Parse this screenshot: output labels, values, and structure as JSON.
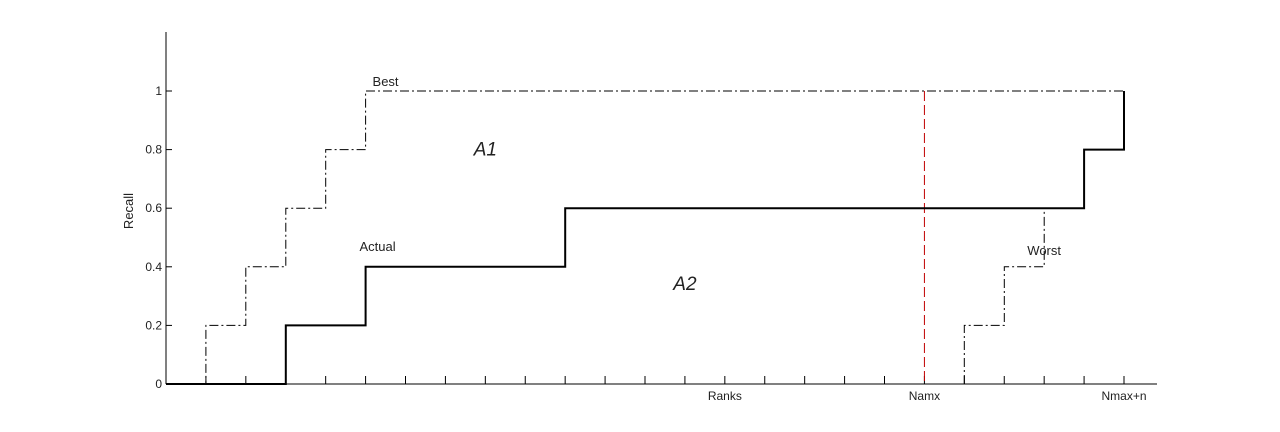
{
  "chart_data": {
    "type": "line",
    "title": "",
    "xlabel": "",
    "ylabel": "Recall",
    "xlim": [
      0,
      24
    ],
    "ylim": [
      0,
      1.2
    ],
    "yticks": [
      0,
      0.2,
      0.4,
      0.6,
      0.8,
      1
    ],
    "ytick_labels": [
      "0",
      "0.2",
      "0.4",
      "0.6",
      "0.8",
      "1"
    ],
    "xticks": [
      0,
      1,
      2,
      3,
      4,
      5,
      6,
      7,
      8,
      9,
      10,
      11,
      12,
      13,
      14,
      15,
      16,
      17,
      18,
      19,
      20,
      21,
      22,
      23,
      24
    ],
    "xtick_labels": [
      {
        "x": 14,
        "label": "Ranks"
      },
      {
        "x": 19,
        "label": "Namx"
      },
      {
        "x": 24,
        "label": "Nmax+n"
      }
    ],
    "series": [
      {
        "name": "Best",
        "style": "dashdot",
        "color": "#000000",
        "steps": [
          [
            0,
            0
          ],
          [
            1,
            0
          ],
          [
            1,
            0.2
          ],
          [
            2,
            0.2
          ],
          [
            2,
            0.4
          ],
          [
            3,
            0.4
          ],
          [
            3,
            0.6
          ],
          [
            4,
            0.6
          ],
          [
            4,
            0.8
          ],
          [
            5,
            0.8
          ],
          [
            5,
            1
          ],
          [
            24,
            1
          ]
        ]
      },
      {
        "name": "Actual",
        "style": "solid",
        "color": "#000000",
        "steps": [
          [
            0,
            0
          ],
          [
            3,
            0
          ],
          [
            3,
            0.2
          ],
          [
            5,
            0.2
          ],
          [
            5,
            0.4
          ],
          [
            10,
            0.4
          ],
          [
            10,
            0.6
          ],
          [
            23,
            0.6
          ],
          [
            23,
            0.8
          ],
          [
            24,
            0.8
          ],
          [
            24,
            1
          ]
        ]
      },
      {
        "name": "Worst",
        "style": "dashdot",
        "color": "#000000",
        "steps": [
          [
            20,
            0
          ],
          [
            20,
            0.2
          ],
          [
            21,
            0.2
          ],
          [
            21,
            0.4
          ],
          [
            22,
            0.4
          ],
          [
            22,
            0.6
          ]
        ]
      }
    ],
    "vlines": [
      {
        "x": 19,
        "color": "#c00000",
        "style": "dashed",
        "label": "Namx"
      }
    ],
    "annotations": [
      {
        "id": "best",
        "text": "Best",
        "x": 5.5,
        "y": 1.0,
        "kind": "label"
      },
      {
        "id": "actual",
        "text": "Actual",
        "x": 5.3,
        "y": 0.44,
        "kind": "label"
      },
      {
        "id": "worst",
        "text": "Worst",
        "x": 22.0,
        "y": 0.44,
        "kind": "label"
      },
      {
        "id": "a1",
        "text": "A1",
        "x": 8.0,
        "y": 0.78,
        "kind": "region"
      },
      {
        "id": "a2",
        "text": "A2",
        "x": 13.0,
        "y": 0.32,
        "kind": "region"
      }
    ]
  }
}
